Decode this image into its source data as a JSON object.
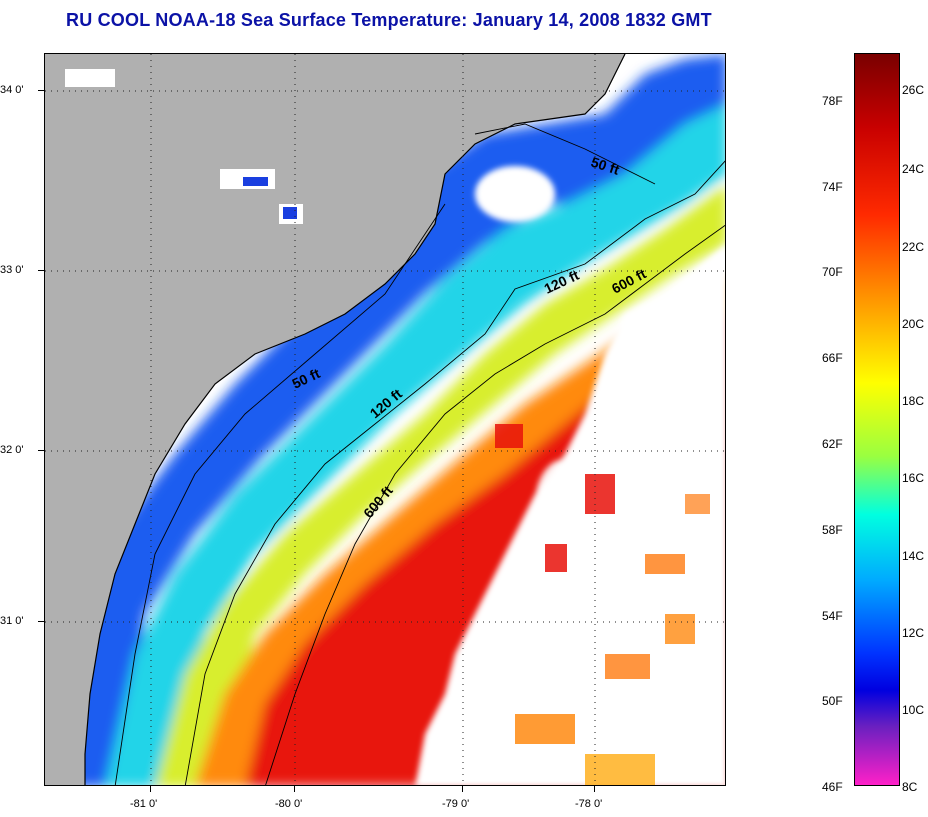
{
  "header": {
    "title": "RU COOL  NOAA-18  Sea Surface Temperature:  January 14, 2008 1832 GMT"
  },
  "map": {
    "lat_labels": [
      "34 0'",
      "33 0'",
      "32 0'",
      "31 0'"
    ],
    "lon_labels": [
      "-81 0'",
      "-80 0'",
      "-79 0'",
      "-78 0'"
    ],
    "contours": [
      {
        "label": "50 ft"
      },
      {
        "label": "50 ft"
      },
      {
        "label": "120 ft"
      },
      {
        "label": "120 ft"
      },
      {
        "label": "600 ft"
      },
      {
        "label": "600 ft"
      }
    ],
    "colors": {
      "land": "#b0b0b0",
      "cloud": "#ffffff",
      "coastline": "#000000",
      "warm": "#e8120a",
      "cool": "#1e5df0"
    }
  },
  "colorbar": {
    "fahrenheit_labels": [
      "78F",
      "74F",
      "70F",
      "66F",
      "62F",
      "58F",
      "54F",
      "50F",
      "46F"
    ],
    "celsius_labels": [
      "26C",
      "24C",
      "22C",
      "20C",
      "18C",
      "16C",
      "14C",
      "12C",
      "10C",
      "8C"
    ]
  }
}
